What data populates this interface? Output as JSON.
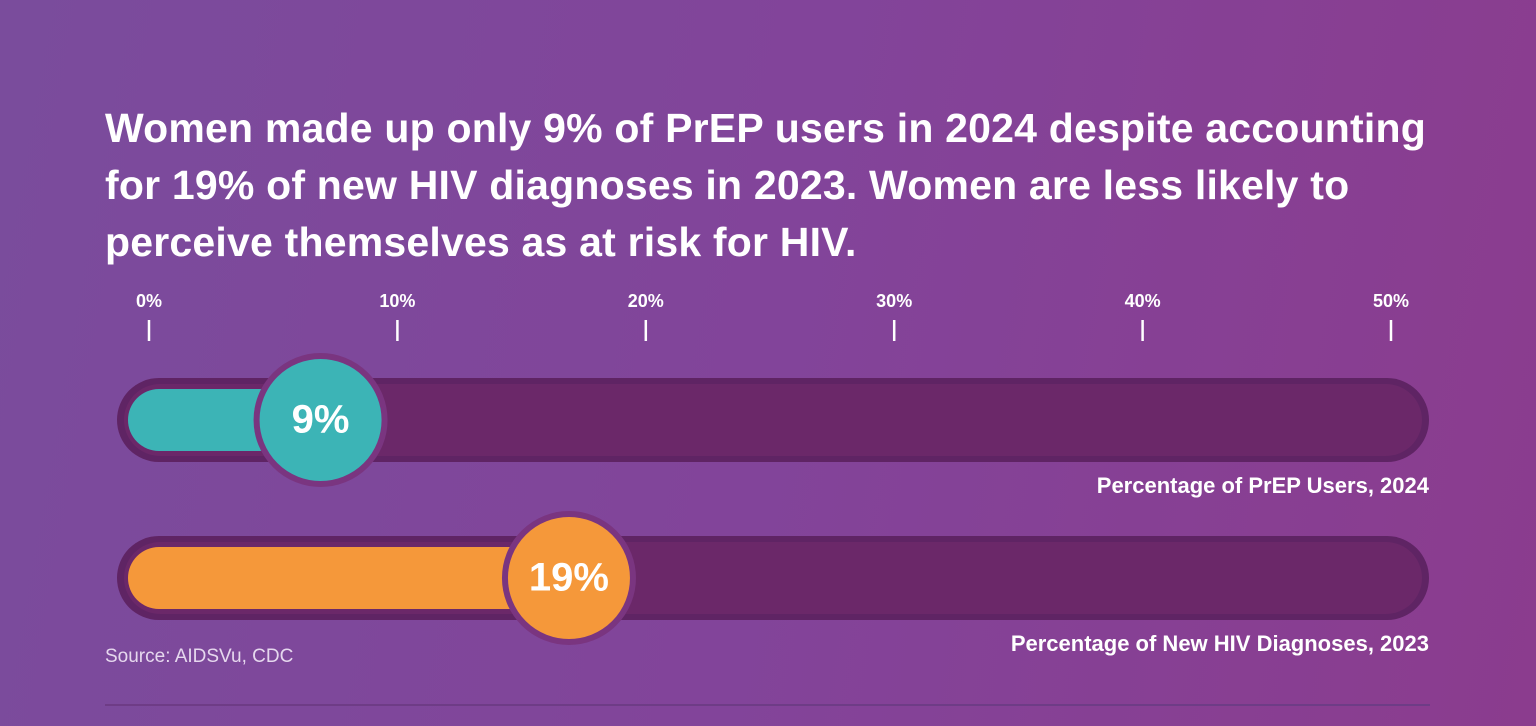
{
  "chart_data": {
    "type": "bar",
    "title": "Women made up only 9% of PrEP users in 2024 despite accounting for 19% of new HIV diagnoses in 2023. Women are less likely to perceive themselves as at risk for HIV.",
    "xlim": [
      0,
      50
    ],
    "xticks": [
      {
        "value": 0,
        "label": "0%"
      },
      {
        "value": 10,
        "label": "10%"
      },
      {
        "value": 20,
        "label": "20%"
      },
      {
        "value": 30,
        "label": "30%"
      },
      {
        "value": 40,
        "label": "40%"
      },
      {
        "value": 50,
        "label": "50%"
      }
    ],
    "series": [
      {
        "name": "Percentage of PrEP Users, 2024",
        "color": "#3cb4b6",
        "values": [
          9
        ],
        "value_labels": [
          "9%"
        ]
      },
      {
        "name": "Percentage of New HIV Diagnoses, 2023",
        "color": "#f5983a",
        "values": [
          19
        ],
        "value_labels": [
          "19%"
        ]
      }
    ],
    "source": "Source: AIDSVu, CDC"
  }
}
